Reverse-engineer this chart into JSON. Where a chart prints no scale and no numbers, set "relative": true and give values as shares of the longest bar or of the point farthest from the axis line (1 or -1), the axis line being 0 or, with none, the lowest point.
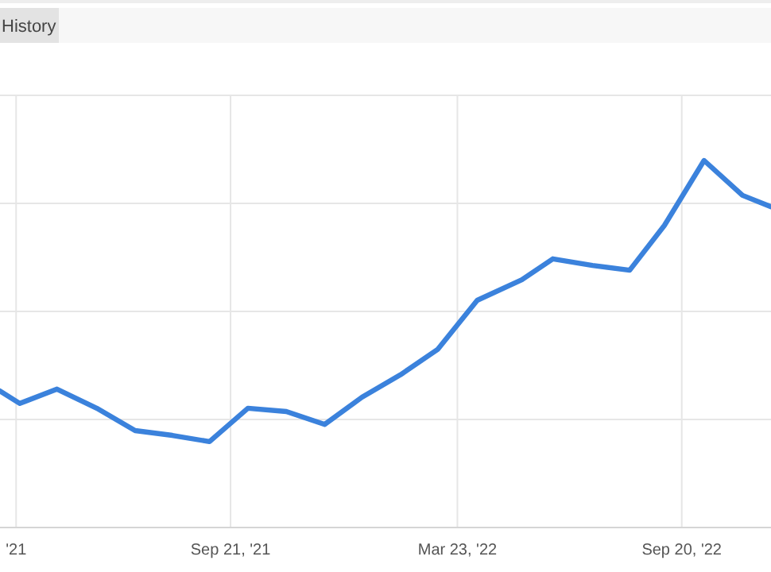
{
  "chart_data": {
    "type": "line",
    "relative": true,
    "annotations": [
      "History"
    ],
    "grid": true,
    "line_style": "solid",
    "marker": "none",
    "xlim": [
      "2021-03-19",
      "2022-12-01"
    ],
    "xticks": [
      {
        "value": "2021-04-01",
        "label": "'21"
      },
      {
        "value": "2021-09-21",
        "label": "Sep 21, '21"
      },
      {
        "value": "2022-03-23",
        "label": "Mar 23, '22"
      },
      {
        "value": "2022-09-20",
        "label": "Sep 20, '22"
      }
    ],
    "series": [
      {
        "color": "#3b82dc",
        "x": [
          "2021-03-19",
          "2021-04-04",
          "2021-05-04",
          "2021-06-05",
          "2021-07-06",
          "2021-08-05",
          "2021-09-04",
          "2021-10-05",
          "2021-11-05",
          "2021-12-06",
          "2022-01-05",
          "2022-02-05",
          "2022-03-07",
          "2022-04-08",
          "2022-05-14",
          "2022-06-08",
          "2022-07-10",
          "2022-08-09",
          "2022-09-06",
          "2022-10-08",
          "2022-11-08",
          "2022-12-01"
        ],
        "values": [
          0.372,
          0.338,
          0.377,
          0.325,
          0.264,
          0.251,
          0.234,
          0.325,
          0.316,
          0.281,
          0.355,
          0.416,
          0.485,
          0.619,
          0.675,
          0.732,
          0.714,
          0.701,
          0.823,
          1,
          0.905,
          0.874
        ]
      }
    ]
  }
}
